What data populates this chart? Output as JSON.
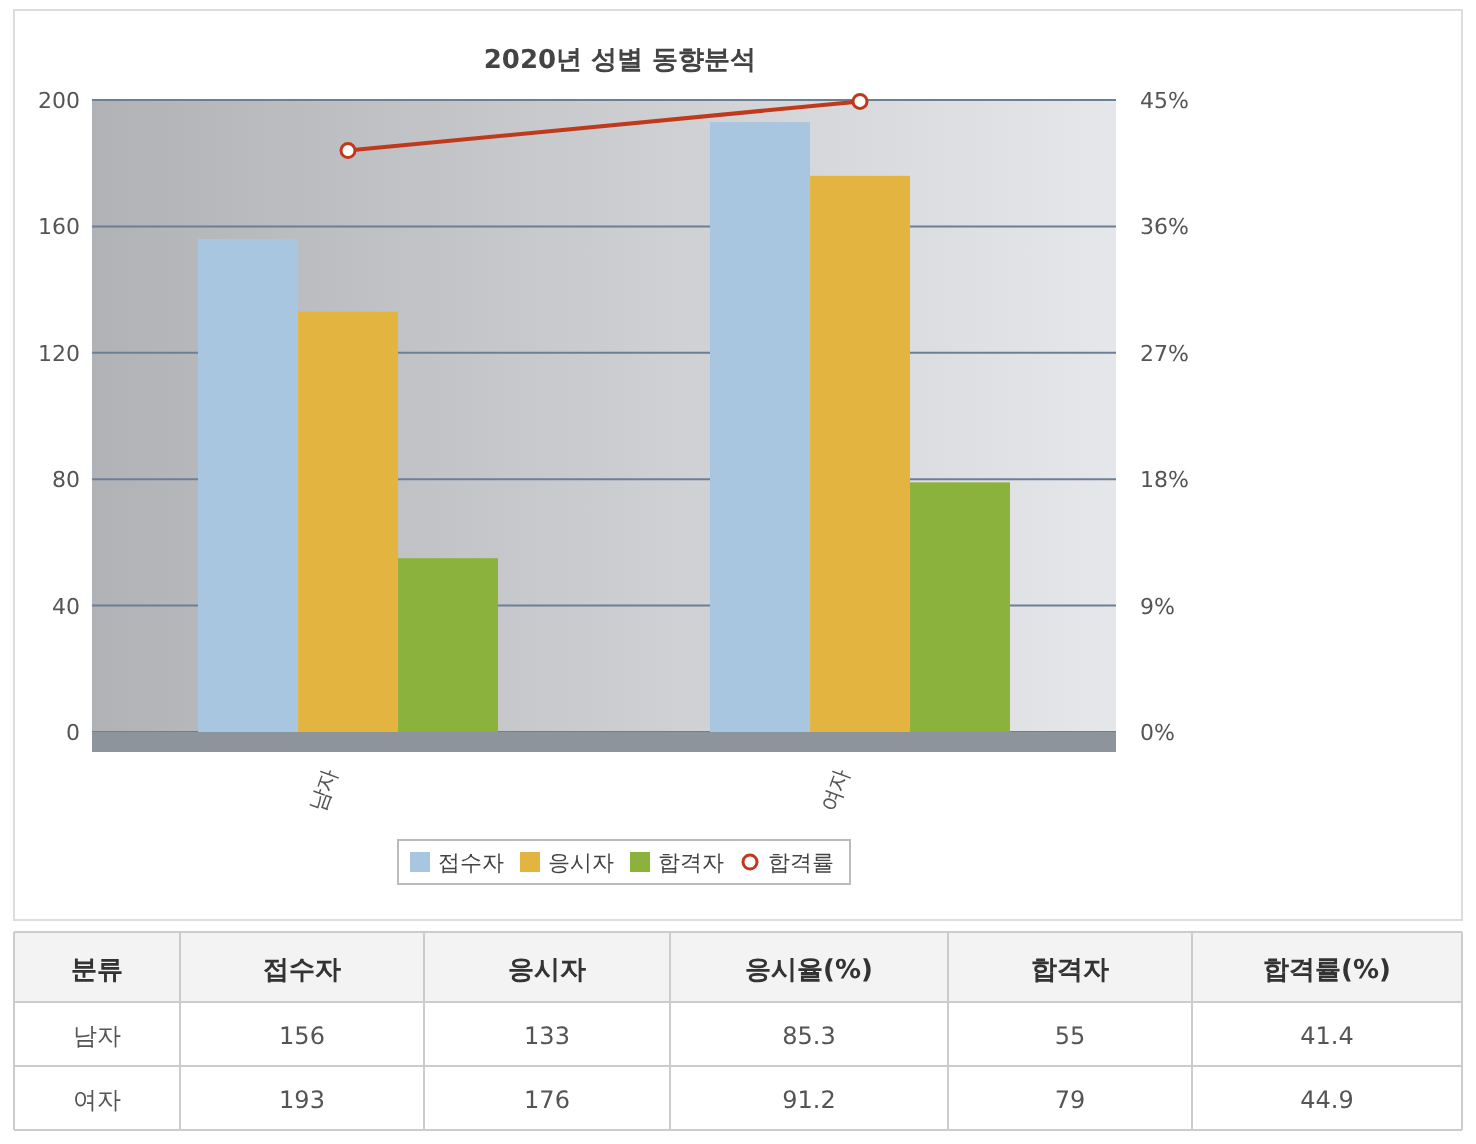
{
  "chart_data": [
    {
      "type": "bar",
      "title": "2020년 성별 동향분석",
      "categories": [
        "남자",
        "여자"
      ],
      "series": [
        {
          "name": "접수자",
          "color": "#a9c6e0",
          "values": [
            156,
            193
          ]
        },
        {
          "name": "응시자",
          "color": "#e3b440",
          "values": [
            133,
            176
          ]
        },
        {
          "name": "합격자",
          "color": "#8bb23c",
          "values": [
            55,
            79
          ]
        },
        {
          "name": "합격률",
          "type": "line",
          "axis": "y2",
          "color": "#c0391b",
          "values": [
            41.4,
            44.9
          ]
        }
      ],
      "ylim": [
        0,
        200
      ],
      "yticks": [
        0,
        40,
        80,
        120,
        160,
        200
      ],
      "y2lim": [
        0,
        45
      ],
      "y2ticks": [
        {
          "value": 0,
          "label": "0%"
        },
        {
          "value": 9,
          "label": "9%"
        },
        {
          "value": 18,
          "label": "18%"
        },
        {
          "value": 27,
          "label": "27%"
        },
        {
          "value": 36,
          "label": "36%"
        },
        {
          "value": 45,
          "label": "45%"
        }
      ],
      "grid": "y",
      "legend": "bottom",
      "marker": "circle"
    },
    {
      "type": "other",
      "xlabel": "분류",
      "categories": [
        "남자",
        "여자"
      ],
      "series": [
        {
          "name": "접수자",
          "values": [
            156,
            193
          ]
        },
        {
          "name": "응시자",
          "values": [
            133,
            176
          ]
        },
        {
          "name": "응시율(%)",
          "values": [
            85.3,
            91.2
          ]
        },
        {
          "name": "합격자",
          "values": [
            55,
            79
          ]
        },
        {
          "name": "합격률(%)",
          "values": [
            41.4,
            44.9
          ]
        }
      ],
      "data_labels": true
    }
  ]
}
